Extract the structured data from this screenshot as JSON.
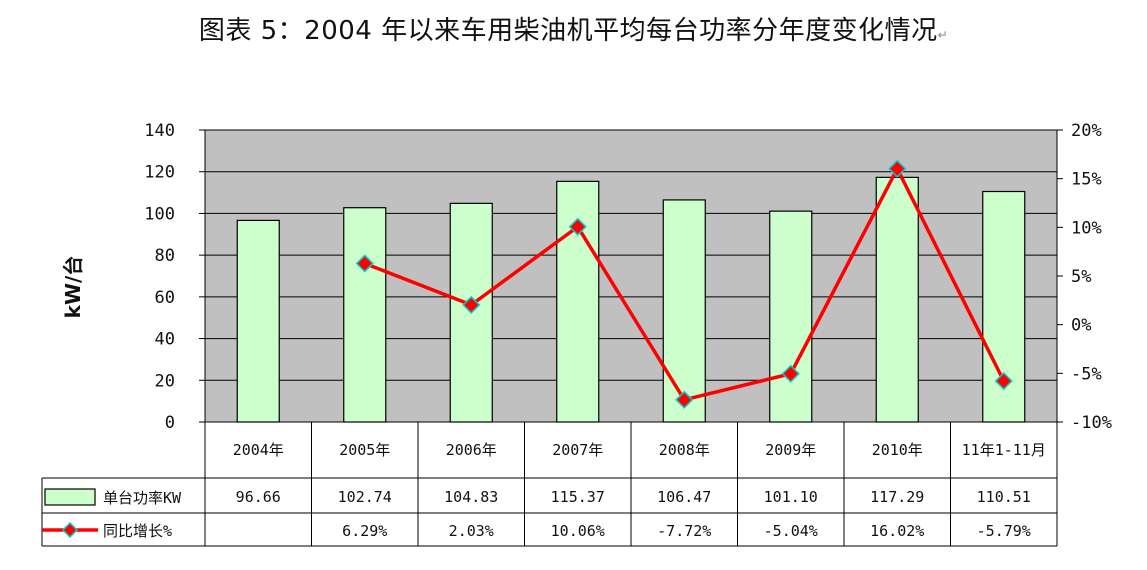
{
  "title": "图表 5：2004 年以来车用柴油机平均每台功率分年度变化情况",
  "title_mark": "↵",
  "chart_data": {
    "type": "bar",
    "title": "图表 5：2004 年以来车用柴油机平均每台功率分年度变化情况",
    "categories": [
      "2004年",
      "2005年",
      "2006年",
      "2007年",
      "2008年",
      "2009年",
      "2010年",
      "11年1-11月"
    ],
    "series": [
      {
        "name": "单台功率KW",
        "kind": "bar",
        "axis": "left",
        "values": [
          96.66,
          102.74,
          104.83,
          115.37,
          106.47,
          101.1,
          117.29,
          110.51
        ],
        "labels": [
          "96.66",
          "102.74",
          "104.83",
          "115.37",
          "106.47",
          "101.10",
          "117.29",
          "110.51"
        ],
        "color": "#ccffcc"
      },
      {
        "name": "同比增长%",
        "kind": "line",
        "axis": "right",
        "values": [
          null,
          6.29,
          2.03,
          10.06,
          -7.72,
          -5.04,
          16.02,
          -5.79
        ],
        "labels": [
          "",
          "6.29%",
          "2.03%",
          "10.06%",
          "-7.72%",
          "-5.04%",
          "16.02%",
          "-5.79%"
        ],
        "color": "#ff0000",
        "marker_color": "#ff0000",
        "marker_edge": "#00cccc"
      }
    ],
    "ylabel": "kW/台",
    "ylim": [
      0,
      140
    ],
    "yticks": [
      0,
      20,
      40,
      60,
      80,
      100,
      120,
      140
    ],
    "y2lim": [
      -10,
      20
    ],
    "y2ticks": [
      "-10%",
      "-5%",
      "0%",
      "5%",
      "10%",
      "15%",
      "20%"
    ],
    "plot_bg": "#c0c0c0",
    "grid": true,
    "legend": "data table"
  }
}
